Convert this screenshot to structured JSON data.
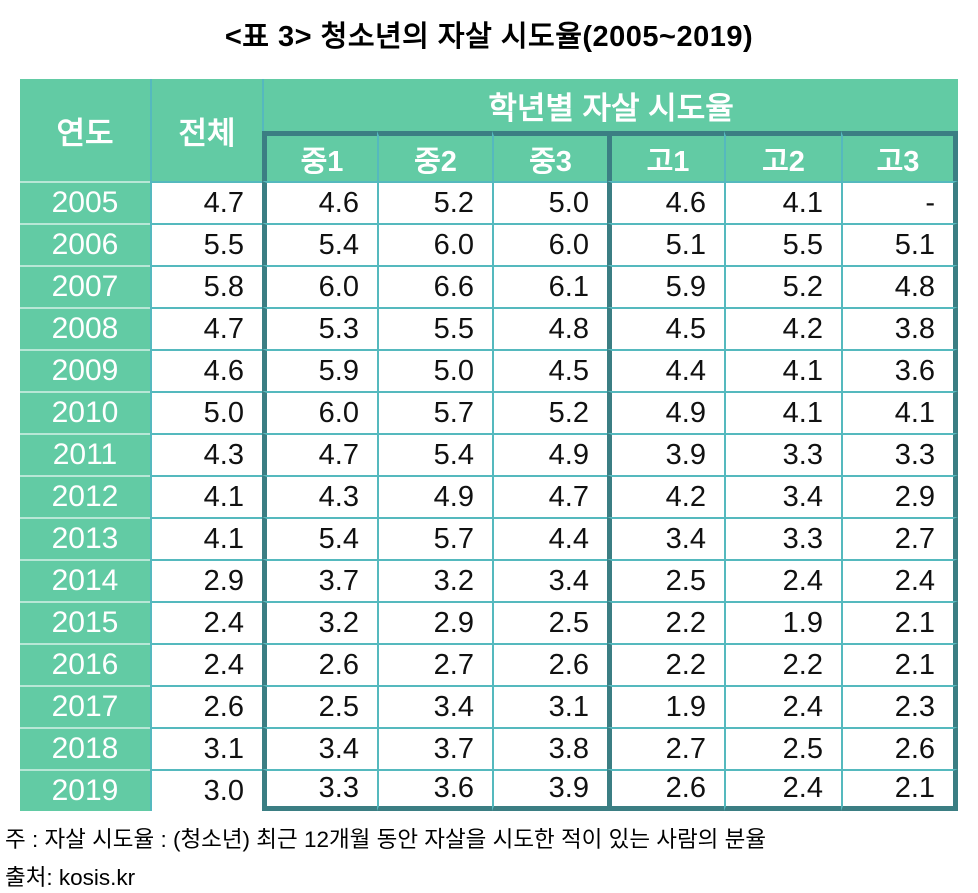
{
  "title": "<표 3> 청소년의 자살 시도율(2005~2019)",
  "table": {
    "col_year": "연도",
    "col_total": "전체",
    "group_header": "학년별 자살 시도율",
    "grade_cols": [
      "중1",
      "중2",
      "중3",
      "고1",
      "고2",
      "고3"
    ],
    "rows": [
      {
        "year": "2005",
        "total": "4.7",
        "grades": [
          "4.6",
          "5.2",
          "5.0",
          "4.6",
          "4.1",
          "-"
        ]
      },
      {
        "year": "2006",
        "total": "5.5",
        "grades": [
          "5.4",
          "6.0",
          "6.0",
          "5.1",
          "5.5",
          "5.1"
        ]
      },
      {
        "year": "2007",
        "total": "5.8",
        "grades": [
          "6.0",
          "6.6",
          "6.1",
          "5.9",
          "5.2",
          "4.8"
        ]
      },
      {
        "year": "2008",
        "total": "4.7",
        "grades": [
          "5.3",
          "5.5",
          "4.8",
          "4.5",
          "4.2",
          "3.8"
        ]
      },
      {
        "year": "2009",
        "total": "4.6",
        "grades": [
          "5.9",
          "5.0",
          "4.5",
          "4.4",
          "4.1",
          "3.6"
        ]
      },
      {
        "year": "2010",
        "total": "5.0",
        "grades": [
          "6.0",
          "5.7",
          "5.2",
          "4.9",
          "4.1",
          "4.1"
        ]
      },
      {
        "year": "2011",
        "total": "4.3",
        "grades": [
          "4.7",
          "5.4",
          "4.9",
          "3.9",
          "3.3",
          "3.3"
        ]
      },
      {
        "year": "2012",
        "total": "4.1",
        "grades": [
          "4.3",
          "4.9",
          "4.7",
          "4.2",
          "3.4",
          "2.9"
        ]
      },
      {
        "year": "2013",
        "total": "4.1",
        "grades": [
          "5.4",
          "5.7",
          "4.4",
          "3.4",
          "3.3",
          "2.7"
        ]
      },
      {
        "year": "2014",
        "total": "2.9",
        "grades": [
          "3.7",
          "3.2",
          "3.4",
          "2.5",
          "2.4",
          "2.4"
        ]
      },
      {
        "year": "2015",
        "total": "2.4",
        "grades": [
          "3.2",
          "2.9",
          "2.5",
          "2.2",
          "1.9",
          "2.1"
        ]
      },
      {
        "year": "2016",
        "total": "2.4",
        "grades": [
          "2.6",
          "2.7",
          "2.6",
          "2.2",
          "2.2",
          "2.1"
        ]
      },
      {
        "year": "2017",
        "total": "2.6",
        "grades": [
          "2.5",
          "3.4",
          "3.1",
          "1.9",
          "2.4",
          "2.3"
        ]
      },
      {
        "year": "2018",
        "total": "3.1",
        "grades": [
          "3.4",
          "3.7",
          "3.8",
          "2.7",
          "2.5",
          "2.6"
        ]
      },
      {
        "year": "2019",
        "total": "3.0",
        "grades": [
          "3.3",
          "3.6",
          "3.9",
          "2.6",
          "2.4",
          "2.1"
        ]
      }
    ]
  },
  "notes": {
    "note": "주 : 자살 시도율 : (청소년) 최근 12개월 동안 자살을 시도한 적이 있는 사람의 분율",
    "source": "출처: kosis.kr"
  },
  "colors": {
    "header_green": "#62cba4",
    "thin_border": "#55b9be",
    "thick_border": "#3b7e83"
  },
  "chart_data": {
    "type": "table",
    "title": "<표 3> 청소년의 자살 시도율(2005~2019)",
    "columns": [
      "연도",
      "전체",
      "중1",
      "중2",
      "중3",
      "고1",
      "고2",
      "고3"
    ],
    "column_group": {
      "label": "학년별 자살 시도율",
      "spans": [
        "중1",
        "중2",
        "중3",
        "고1",
        "고2",
        "고3"
      ]
    },
    "rows": [
      [
        "2005",
        4.7,
        4.6,
        5.2,
        5.0,
        4.6,
        4.1,
        null
      ],
      [
        "2006",
        5.5,
        5.4,
        6.0,
        6.0,
        5.1,
        5.5,
        5.1
      ],
      [
        "2007",
        5.8,
        6.0,
        6.6,
        6.1,
        5.9,
        5.2,
        4.8
      ],
      [
        "2008",
        4.7,
        5.3,
        5.5,
        4.8,
        4.5,
        4.2,
        3.8
      ],
      [
        "2009",
        4.6,
        5.9,
        5.0,
        4.5,
        4.4,
        4.1,
        3.6
      ],
      [
        "2010",
        5.0,
        6.0,
        5.7,
        5.2,
        4.9,
        4.1,
        4.1
      ],
      [
        "2011",
        4.3,
        4.7,
        5.4,
        4.9,
        3.9,
        3.3,
        3.3
      ],
      [
        "2012",
        4.1,
        4.3,
        4.9,
        4.7,
        4.2,
        3.4,
        2.9
      ],
      [
        "2013",
        4.1,
        5.4,
        5.7,
        4.4,
        3.4,
        3.3,
        2.7
      ],
      [
        "2014",
        2.9,
        3.7,
        3.2,
        3.4,
        2.5,
        2.4,
        2.4
      ],
      [
        "2015",
        2.4,
        3.2,
        2.9,
        2.5,
        2.2,
        1.9,
        2.1
      ],
      [
        "2016",
        2.4,
        2.6,
        2.7,
        2.6,
        2.2,
        2.2,
        2.1
      ],
      [
        "2017",
        2.6,
        2.5,
        3.4,
        3.1,
        1.9,
        2.4,
        2.3
      ],
      [
        "2018",
        3.1,
        3.4,
        3.7,
        3.8,
        2.7,
        2.5,
        2.6
      ],
      [
        "2019",
        3.0,
        3.3,
        3.6,
        3.9,
        2.6,
        2.4,
        2.1
      ]
    ],
    "footnote": "주 : 자살 시도율 : (청소년) 최근 12개월 동안 자살을 시도한 적이 있는 사람의 분율",
    "source": "출처: kosis.kr"
  }
}
